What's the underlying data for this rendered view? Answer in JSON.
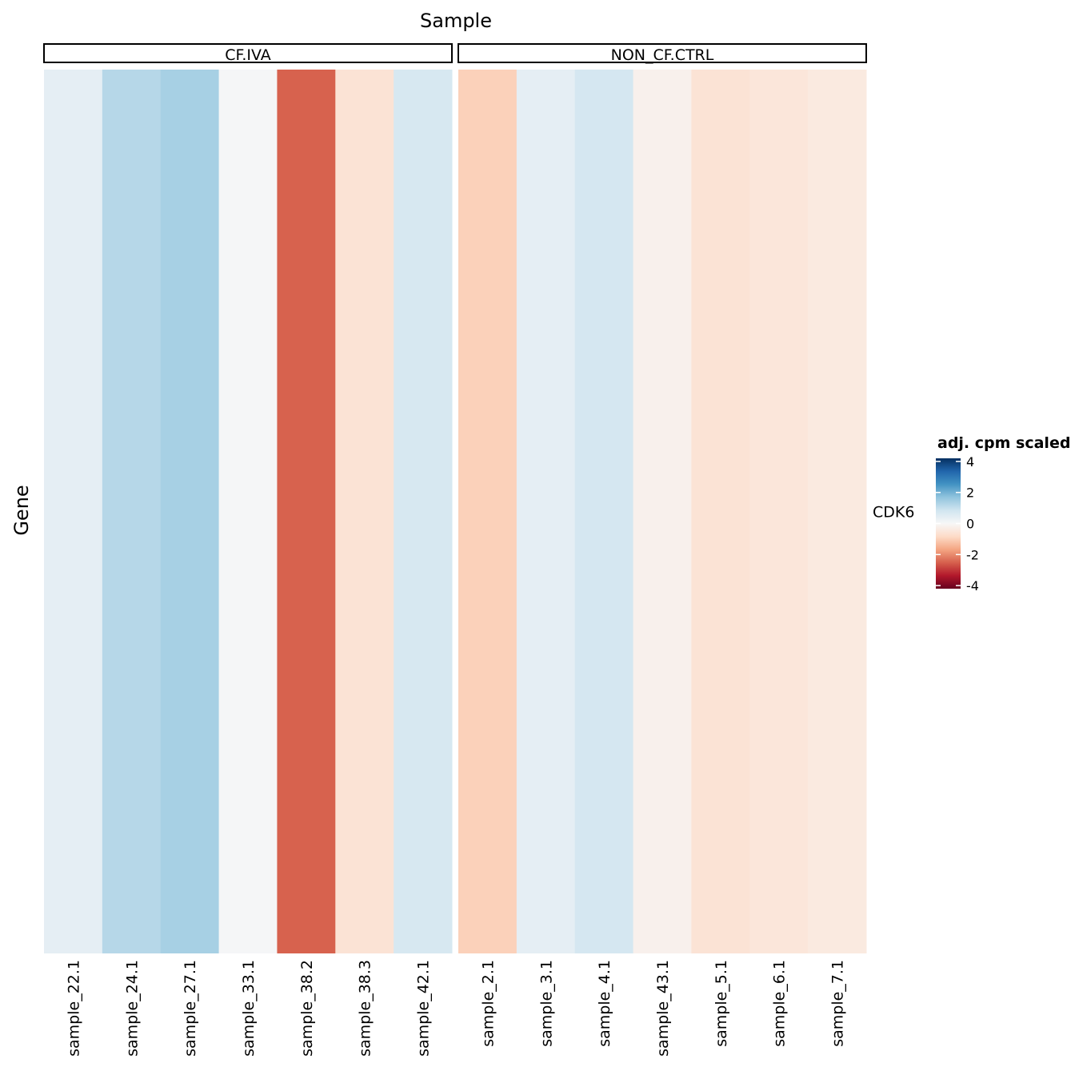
{
  "chart_data": {
    "type": "heatmap",
    "title": "Sample",
    "y_label": "Gene",
    "rows": [
      "CDK6"
    ],
    "facets": [
      {
        "name": "CF.IVA",
        "categories": [
          "sample_22.1",
          "sample_24.1",
          "sample_27.1",
          "sample_33.1",
          "sample_38.2",
          "sample_38.3",
          "sample_42.1"
        ],
        "values": [
          0.4,
          1.2,
          1.4,
          0.05,
          -2.5,
          -0.6,
          0.7
        ]
      },
      {
        "name": "NON_CF.CTRL",
        "categories": [
          "sample_2.1",
          "sample_3.1",
          "sample_4.1",
          "sample_43.1",
          "sample_5.1",
          "sample_6.1",
          "sample_7.1"
        ],
        "values": [
          -1.0,
          0.4,
          0.75,
          -0.2,
          -0.6,
          -0.5,
          -0.4
        ]
      }
    ],
    "legend_title": "adj. cpm scaled",
    "clim": [
      -4.2,
      4.2
    ],
    "cticks": [
      -4,
      -2,
      0,
      2,
      4
    ],
    "colorscale": [
      "#67001f",
      "#b2182b",
      "#d6604d",
      "#f4a582",
      "#fddbc7",
      "#f7f7f7",
      "#d1e5f0",
      "#92c5de",
      "#4393c3",
      "#2166ac",
      "#053061"
    ]
  }
}
